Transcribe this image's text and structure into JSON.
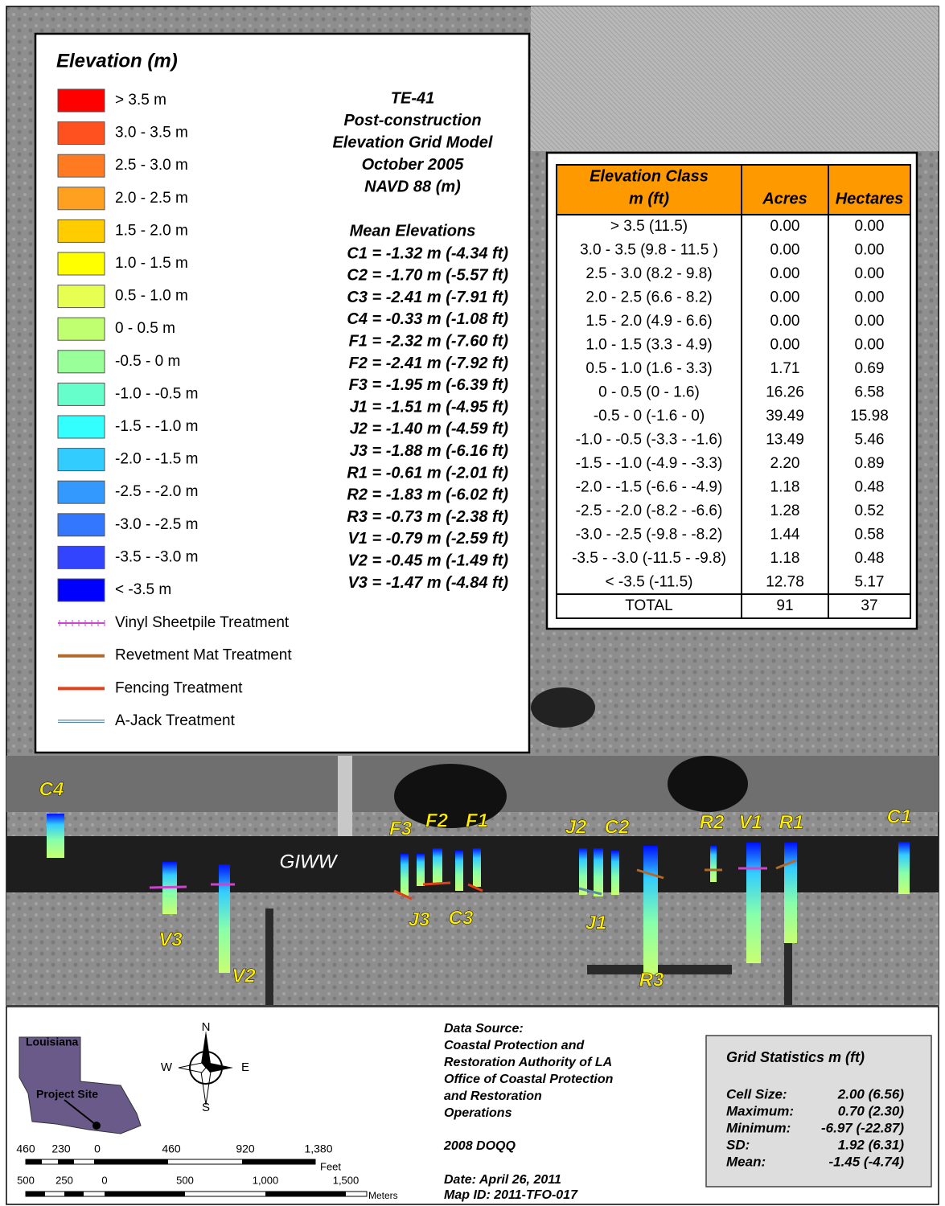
{
  "legend": {
    "title": "Elevation (m)",
    "classes": [
      {
        "label": "> 3.5 m",
        "color": "#ff0000"
      },
      {
        "label": "3.0 - 3.5 m",
        "color": "#ff5020"
      },
      {
        "label": "2.5 - 3.0 m",
        "color": "#ff7a20"
      },
      {
        "label": "2.0 - 2.5 m",
        "color": "#ffa020"
      },
      {
        "label": "1.5 - 2.0 m",
        "color": "#ffcc00"
      },
      {
        "label": "1.0 - 1.5 m",
        "color": "#ffff00"
      },
      {
        "label": "0.5 - 1.0 m",
        "color": "#e6ff50"
      },
      {
        "label": "0 - 0.5 m",
        "color": "#bfff70"
      },
      {
        "label": "-0.5 - 0 m",
        "color": "#99ff99"
      },
      {
        "label": "-1.0 - -0.5 m",
        "color": "#66ffcc"
      },
      {
        "label": "-1.5 - -1.0 m",
        "color": "#33ffff"
      },
      {
        "label": "-2.0 - -1.5 m",
        "color": "#33ccff"
      },
      {
        "label": "-2.5 - -2.0 m",
        "color": "#3399ff"
      },
      {
        "label": "-3.0 - -2.5 m",
        "color": "#3377ff"
      },
      {
        "label": "-3.5 - -3.0 m",
        "color": "#3344ff"
      },
      {
        "label": "< -3.5 m",
        "color": "#0000ff"
      }
    ],
    "lines": [
      {
        "label": "Vinyl Sheetpile Treatment",
        "color": "#cc44cc"
      },
      {
        "label": "Revetment Mat Treatment",
        "color": "#b06a2a"
      },
      {
        "label": "Fencing Treatment",
        "color": "#e0401a"
      },
      {
        "label": "A-Jack Treatment",
        "color": "#5a8aa0"
      }
    ]
  },
  "map_title": {
    "lines": [
      "TE-41",
      "Post-construction",
      "Elevation Grid Model",
      "October 2005",
      "NAVD 88 (m)"
    ],
    "mean_heading": "Mean Elevations",
    "means": [
      "C1 = -1.32 m (-4.34 ft)",
      "C2 = -1.70 m (-5.57 ft)",
      "C3 = -2.41 m (-7.91 ft)",
      "C4 = -0.33 m (-1.08 ft)",
      "F1 = -2.32 m (-7.60 ft)",
      "F2 = -2.41 m (-7.92 ft)",
      "F3 = -1.95 m (-6.39 ft)",
      "J1 = -1.51 m (-4.95 ft)",
      "J2 = -1.40 m (-4.59 ft)",
      "J3 = -1.88 m (-6.16 ft)",
      "R1 = -0.61 m (-2.01 ft)",
      "R2 = -1.83 m (-6.02 ft)",
      "R3 = -0.73 m (-2.38 ft)",
      "V1 = -0.79 m (-2.59 ft)",
      "V2 = -0.45 m (-1.49 ft)",
      "V3 = -1.47 m (-4.84 ft)"
    ]
  },
  "table": {
    "header": [
      [
        "Elevation Class",
        "m (ft)"
      ],
      [
        "Acres"
      ],
      [
        "Hectares"
      ]
    ],
    "header_color": "#ff9900",
    "rows": [
      [
        "> 3.5 (11.5)",
        "0.00",
        "0.00"
      ],
      [
        "3.0 - 3.5 (9.8 - 11.5 )",
        "0.00",
        "0.00"
      ],
      [
        "2.5 - 3.0  (8.2 - 9.8)",
        "0.00",
        "0.00"
      ],
      [
        "2.0 - 2.5 (6.6 - 8.2)",
        "0.00",
        "0.00"
      ],
      [
        "1.5 - 2.0 (4.9 - 6.6)",
        "0.00",
        "0.00"
      ],
      [
        "1.0 - 1.5 (3.3 - 4.9)",
        "0.00",
        "0.00"
      ],
      [
        "0.5 - 1.0 (1.6 - 3.3)",
        "1.71",
        "0.69"
      ],
      [
        "0 - 0.5 (0 - 1.6)",
        "16.26",
        "6.58"
      ],
      [
        "-0.5 - 0 (-1.6 - 0)",
        "39.49",
        "15.98"
      ],
      [
        "-1.0 - -0.5 (-3.3 - -1.6)",
        "13.49",
        "5.46"
      ],
      [
        "-1.5 - -1.0 (-4.9 - -3.3)",
        "2.20",
        "0.89"
      ],
      [
        "-2.0 - -1.5 (-6.6 - -4.9)",
        "1.18",
        "0.48"
      ],
      [
        "-2.5 - -2.0 (-8.2 - -6.6)",
        "1.28",
        "0.52"
      ],
      [
        "-3.0 - -2.5 (-9.8 - -8.2)",
        "1.44",
        "0.58"
      ],
      [
        "-3.5 - -3.0 (-11.5 - -9.8)",
        "1.18",
        "0.48"
      ],
      [
        "< -3.5 (-11.5)",
        "12.78",
        "5.17"
      ]
    ],
    "total": [
      "TOTAL",
      "91",
      "37"
    ]
  },
  "map_labels": {
    "sites": [
      "C4",
      "F3",
      "F2",
      "F1",
      "J2",
      "C2",
      "R2",
      "V1",
      "R1",
      "C1",
      "J3",
      "C3",
      "J1",
      "V3",
      "V2",
      "R3"
    ],
    "channel": "GIWW"
  },
  "inset": {
    "state": "Louisiana",
    "site": "Project Site"
  },
  "compass": [
    "N",
    "E",
    "S",
    "W"
  ],
  "scale_bar": {
    "feet_ticks": [
      "460",
      "230",
      "0",
      "460",
      "920",
      "1,380"
    ],
    "feet_unit": "Feet",
    "meter_ticks": [
      "500",
      "250",
      "0",
      "500",
      "1,000",
      "1,500"
    ],
    "meter_unit": "Meters"
  },
  "source": {
    "lines": [
      "Data Source:",
      "Coastal Protection and",
      "Restoration Authority of LA",
      "Office of Coastal Protection",
      "and Restoration",
      "Operations"
    ],
    "imagery": "2008 DOQQ",
    "date": "Date: April 26, 2011",
    "map_id": "Map ID: 2011-TFO-017"
  },
  "grid_statistics": {
    "title": "Grid Statistics m (ft)",
    "rows": [
      [
        "Cell Size:",
        "2.00 (6.56)"
      ],
      [
        "Maximum:",
        "0.70 (2.30)"
      ],
      [
        "Minimum:",
        "-6.97 (-22.87)"
      ],
      [
        "SD:",
        "1.92 (6.31)"
      ],
      [
        "Mean:",
        "-1.45 (-4.74)"
      ]
    ]
  }
}
